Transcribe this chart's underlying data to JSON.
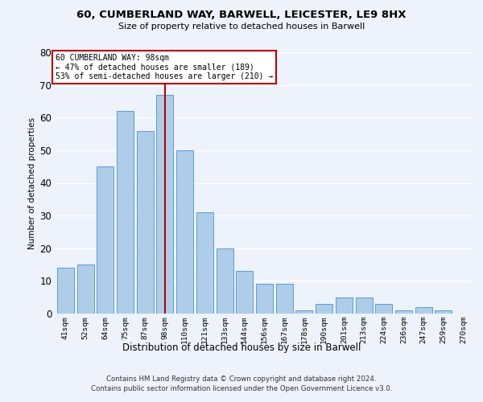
{
  "title": "60, CUMBERLAND WAY, BARWELL, LEICESTER, LE9 8HX",
  "subtitle": "Size of property relative to detached houses in Barwell",
  "xlabel": "Distribution of detached houses by size in Barwell",
  "ylabel": "Number of detached properties",
  "categories": [
    "41sqm",
    "52sqm",
    "64sqm",
    "75sqm",
    "87sqm",
    "98sqm",
    "110sqm",
    "121sqm",
    "133sqm",
    "144sqm",
    "156sqm",
    "167sqm",
    "178sqm",
    "190sqm",
    "201sqm",
    "213sqm",
    "224sqm",
    "236sqm",
    "247sqm",
    "259sqm",
    "270sqm"
  ],
  "values": [
    14,
    15,
    45,
    62,
    56,
    67,
    50,
    31,
    20,
    13,
    9,
    9,
    1,
    3,
    5,
    5,
    3,
    1,
    2,
    1,
    0
  ],
  "bar_color": "#aecde8",
  "bar_edge_color": "#5b9bd5",
  "highlight_index": 5,
  "highlight_line_color": "#bb0000",
  "annotation_line1": "60 CUMBERLAND WAY: 98sqm",
  "annotation_line2": "← 47% of detached houses are smaller (189)",
  "annotation_line3": "53% of semi-detached houses are larger (210) →",
  "ylim_max": 80,
  "yticks": [
    0,
    10,
    20,
    30,
    40,
    50,
    60,
    70,
    80
  ],
  "background_color": "#edf2fb",
  "grid_color": "#ffffff",
  "footer_line1": "Contains HM Land Registry data © Crown copyright and database right 2024.",
  "footer_line2": "Contains public sector information licensed under the Open Government Licence v3.0."
}
